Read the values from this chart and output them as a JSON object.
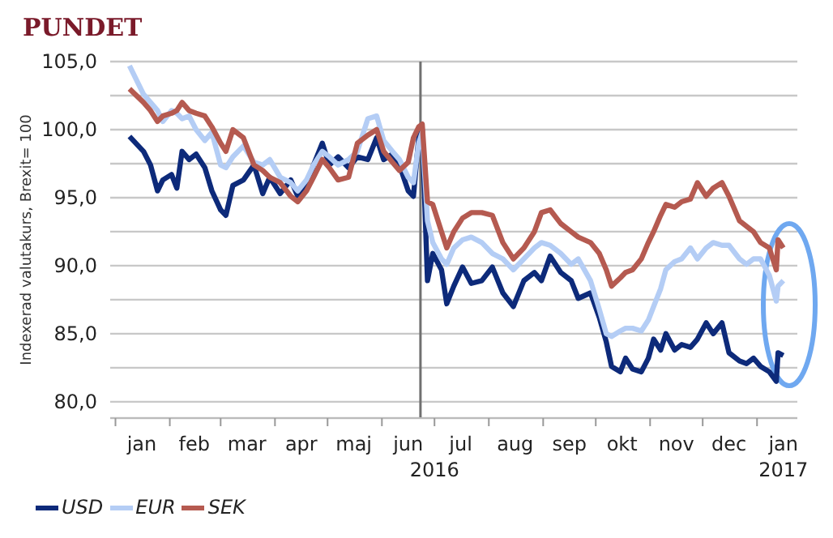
{
  "chart_data": {
    "type": "line",
    "title": "PUNDET",
    "ylabel": "Indexerad valutakurs, Brexit= 100",
    "x": [
      "2016-01-09",
      "2016-01-17",
      "2016-01-21",
      "2016-01-25",
      "2016-01-28",
      "2016-02-02",
      "2016-02-05",
      "2016-02-08",
      "2016-02-12",
      "2016-02-16",
      "2016-02-21",
      "2016-02-25",
      "2016-03-01",
      "2016-03-04",
      "2016-03-08",
      "2016-03-14",
      "2016-03-20",
      "2016-03-25",
      "2016-03-29",
      "2016-04-04",
      "2016-04-10",
      "2016-04-14",
      "2016-04-19",
      "2016-04-23",
      "2016-04-28",
      "2016-05-02",
      "2016-05-07",
      "2016-05-13",
      "2016-05-18",
      "2016-05-24",
      "2016-05-29",
      "2016-06-02",
      "2016-06-07",
      "2016-06-11",
      "2016-06-16",
      "2016-06-19",
      "2016-06-22",
      "2016-06-24",
      "2016-06-27",
      "2016-06-30",
      "2016-07-05",
      "2016-07-08",
      "2016-07-12",
      "2016-07-17",
      "2016-07-22",
      "2016-07-28",
      "2016-08-03",
      "2016-08-09",
      "2016-08-15",
      "2016-08-21",
      "2016-08-27",
      "2016-08-31",
      "2016-09-05",
      "2016-09-11",
      "2016-09-17",
      "2016-09-21",
      "2016-09-28",
      "2016-10-03",
      "2016-10-07",
      "2016-10-10",
      "2016-10-15",
      "2016-10-18",
      "2016-10-22",
      "2016-10-27",
      "2016-10-31",
      "2016-11-03",
      "2016-11-07",
      "2016-11-10",
      "2016-11-15",
      "2016-11-19",
      "2016-11-24",
      "2016-11-28",
      "2016-12-03",
      "2016-12-07",
      "2016-12-12",
      "2016-12-16",
      "2016-12-22",
      "2016-12-26",
      "2016-12-30",
      "2017-01-03",
      "2017-01-08",
      "2017-01-12",
      "2017-01-13",
      "2017-01-16"
    ],
    "series": [
      {
        "name": "USD",
        "color": "#0d2a7a",
        "values": [
          99.5,
          98.4,
          97.4,
          95.5,
          96.3,
          96.7,
          95.7,
          98.4,
          97.8,
          98.2,
          97.2,
          95.5,
          94.1,
          93.7,
          95.9,
          96.3,
          97.4,
          95.3,
          96.5,
          95.3,
          96.3,
          95.1,
          95.9,
          97.4,
          99.0,
          97.4,
          98.0,
          97.2,
          98.0,
          97.8,
          99.4,
          97.8,
          98.2,
          97.4,
          95.5,
          95.1,
          99.4,
          100.0,
          88.9,
          90.9,
          89.7,
          87.2,
          88.5,
          89.9,
          88.7,
          88.9,
          89.9,
          88.0,
          87.0,
          88.9,
          89.5,
          88.9,
          90.7,
          89.5,
          88.9,
          87.6,
          88.0,
          86.2,
          84.4,
          82.6,
          82.2,
          83.2,
          82.4,
          82.2,
          83.2,
          84.6,
          83.8,
          85.0,
          83.8,
          84.2,
          84.0,
          84.6,
          85.8,
          85.0,
          85.8,
          83.6,
          83.0,
          82.8,
          83.2,
          82.6,
          82.2,
          81.5,
          83.6,
          83.4
        ]
      },
      {
        "name": "EUR",
        "color": "#b4cdf5",
        "values": [
          104.7,
          102.6,
          102.0,
          101.4,
          100.6,
          101.4,
          101.2,
          100.8,
          101.0,
          100.0,
          99.2,
          99.8,
          97.4,
          97.2,
          98.0,
          98.8,
          97.6,
          97.4,
          97.8,
          96.5,
          96.1,
          95.5,
          96.3,
          97.4,
          98.4,
          98.0,
          97.4,
          97.8,
          98.4,
          100.8,
          101.0,
          99.2,
          98.4,
          97.8,
          96.5,
          96.1,
          99.0,
          99.8,
          93.3,
          91.7,
          90.5,
          90.1,
          91.3,
          91.9,
          92.1,
          91.7,
          90.9,
          90.5,
          89.7,
          90.5,
          91.3,
          91.7,
          91.5,
          90.9,
          90.1,
          90.5,
          88.9,
          86.8,
          85.0,
          84.8,
          85.2,
          85.4,
          85.4,
          85.2,
          86.0,
          87.0,
          88.3,
          89.7,
          90.3,
          90.5,
          91.3,
          90.5,
          91.3,
          91.7,
          91.5,
          91.5,
          90.5,
          90.1,
          90.5,
          90.5,
          89.3,
          87.4,
          88.5,
          88.9
        ]
      },
      {
        "name": "SEK",
        "color": "#b55a50",
        "values": [
          103.0,
          102.0,
          101.4,
          100.6,
          101.0,
          101.2,
          101.4,
          102.0,
          101.4,
          101.2,
          101.0,
          100.2,
          99.0,
          98.4,
          100.0,
          99.4,
          97.4,
          97.0,
          96.5,
          96.1,
          95.1,
          94.7,
          95.5,
          96.5,
          97.8,
          97.2,
          96.3,
          96.5,
          99.0,
          99.6,
          100.0,
          98.4,
          97.6,
          97.0,
          97.6,
          99.4,
          100.2,
          100.4,
          94.7,
          94.5,
          92.5,
          91.3,
          92.5,
          93.5,
          93.9,
          93.9,
          93.7,
          91.7,
          90.5,
          91.3,
          92.5,
          93.9,
          94.1,
          93.1,
          92.5,
          92.1,
          91.7,
          90.9,
          89.7,
          88.5,
          89.1,
          89.5,
          89.7,
          90.5,
          91.7,
          92.5,
          93.7,
          94.5,
          94.3,
          94.7,
          94.9,
          96.1,
          95.1,
          95.7,
          96.1,
          95.1,
          93.3,
          92.9,
          92.5,
          91.7,
          91.3,
          89.7,
          91.9,
          91.3
        ]
      }
    ],
    "xlim": [
      "2015-12-29",
      "2017-01-24"
    ],
    "xticks": [
      {
        "value": "2016-01-01",
        "label": null
      },
      {
        "value": "2016-01-16",
        "label": "jan"
      },
      {
        "value": "2016-02-01",
        "label": null
      },
      {
        "value": "2016-02-15",
        "label": "feb"
      },
      {
        "value": "2016-03-01",
        "label": null
      },
      {
        "value": "2016-03-16",
        "label": "mar"
      },
      {
        "value": "2016-04-01",
        "label": null
      },
      {
        "value": "2016-04-16",
        "label": "apr"
      },
      {
        "value": "2016-05-01",
        "label": null
      },
      {
        "value": "2016-05-16",
        "label": "maj"
      },
      {
        "value": "2016-06-01",
        "label": null
      },
      {
        "value": "2016-06-16",
        "label": "jun"
      },
      {
        "value": "2016-07-01",
        "label": null
      },
      {
        "value": "2016-07-16",
        "label": "jul"
      },
      {
        "value": "2016-08-01",
        "label": null
      },
      {
        "value": "2016-08-16",
        "label": "aug"
      },
      {
        "value": "2016-09-01",
        "label": null
      },
      {
        "value": "2016-09-16",
        "label": "sep"
      },
      {
        "value": "2016-10-01",
        "label": null
      },
      {
        "value": "2016-10-16",
        "label": "okt"
      },
      {
        "value": "2016-11-01",
        "label": null
      },
      {
        "value": "2016-11-16",
        "label": "nov"
      },
      {
        "value": "2016-12-01",
        "label": null
      },
      {
        "value": "2016-12-16",
        "label": "dec"
      },
      {
        "value": "2017-01-01",
        "label": null
      },
      {
        "value": "2017-01-16",
        "label": "jan"
      }
    ],
    "x2lim": [
      "2015-12-29",
      "2017-01-24"
    ],
    "x2ticks": [
      {
        "value": "2016-07-01",
        "label": "2016"
      },
      {
        "value": "2017-01-16",
        "label": "2017"
      }
    ],
    "ylim": [
      78.8,
      105
    ],
    "yticks": [
      {
        "value": 80,
        "label": "80,0"
      },
      {
        "value": 82.5,
        "label": null
      },
      {
        "value": 85,
        "label": "85,0"
      },
      {
        "value": 87.5,
        "label": null
      },
      {
        "value": 90,
        "label": "90,0"
      },
      {
        "value": 92.5,
        "label": null
      },
      {
        "value": 95,
        "label": "95,0"
      },
      {
        "value": 97.5,
        "label": null
      },
      {
        "value": 100,
        "label": "100,0"
      },
      {
        "value": 102.5,
        "label": null
      },
      {
        "value": 105,
        "label": "105,0"
      }
    ],
    "ref_lines": [
      {
        "axis": "x",
        "value": "2016-06-23",
        "color": "#707070"
      }
    ],
    "grid": "y",
    "legend": "bottom left",
    "marker": "none",
    "line_style": "solid"
  }
}
